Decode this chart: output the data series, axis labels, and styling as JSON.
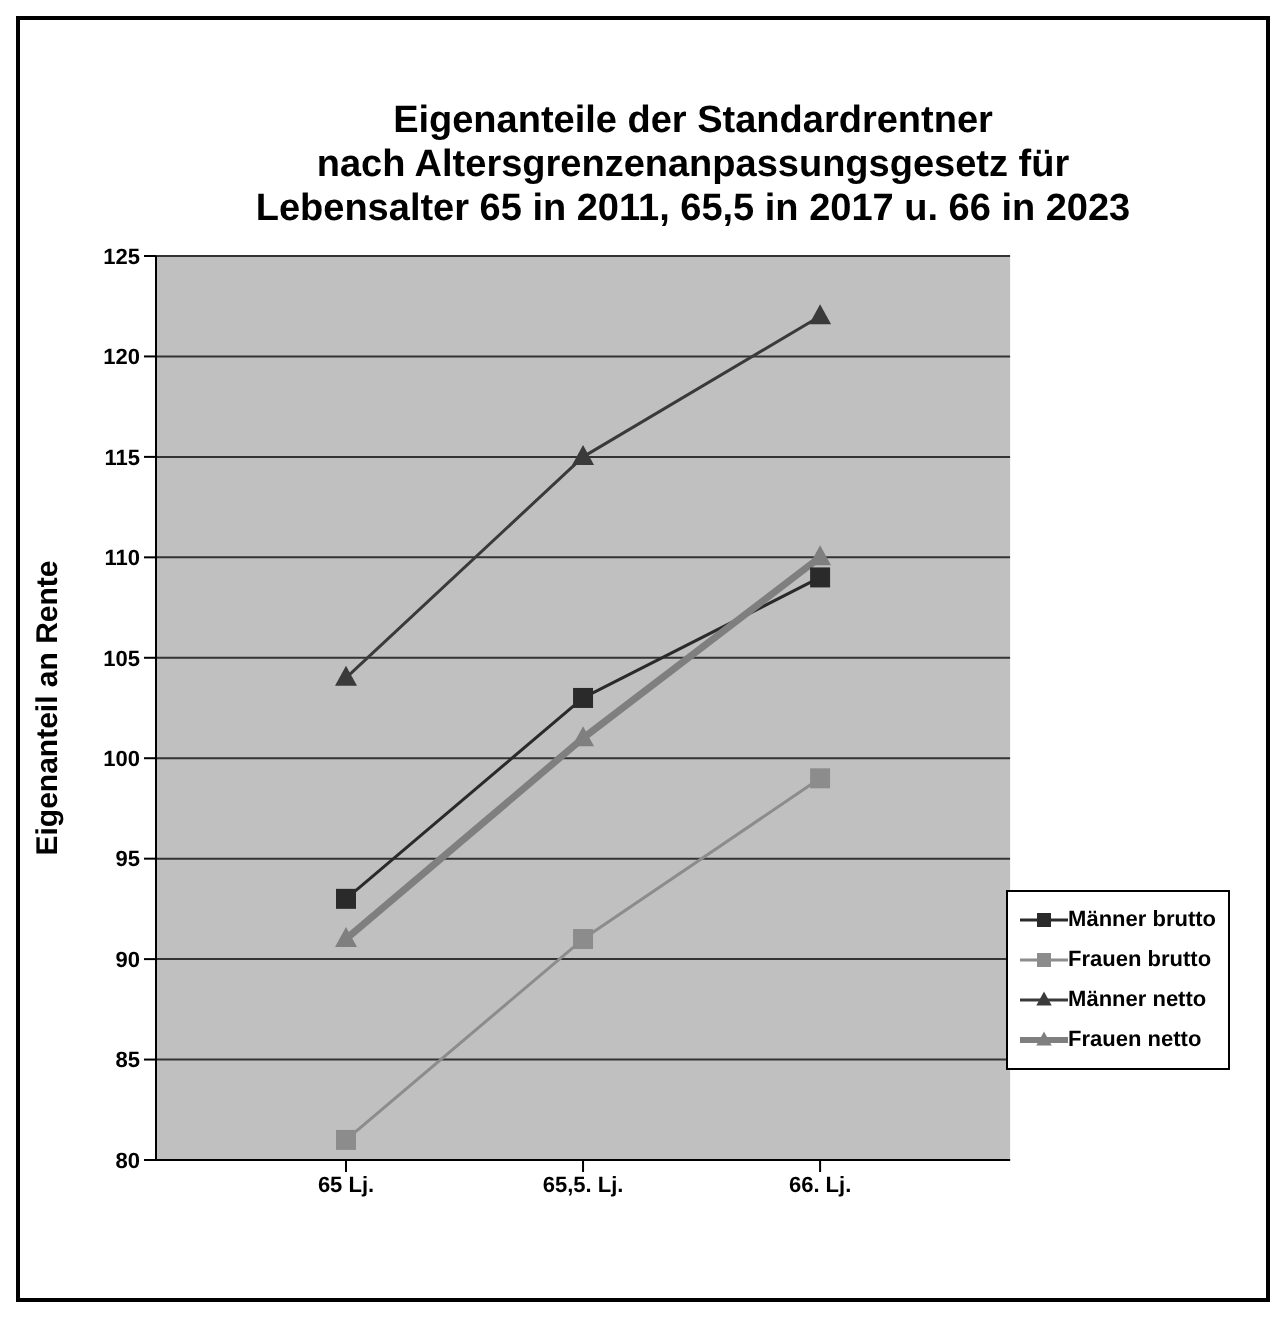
{
  "chart_data": {
    "type": "line",
    "title": "Eigenanteile der Standardrentner\nnach Altersgrenzenanpassungsgesetz für\nLebensalter 65 in 2011, 65,5 in 2017 u. 66 in 2023",
    "ylabel": "Eigenanteil an Rente",
    "categories": [
      "65 Lj.",
      "65,5. Lj.",
      "66. Lj."
    ],
    "series": [
      {
        "name": "Männer brutto",
        "color": "#2a2a2a",
        "marker": "square",
        "values": [
          93,
          103,
          109
        ]
      },
      {
        "name": "Frauen brutto",
        "color": "#8c8c8c",
        "marker": "square",
        "values": [
          81,
          91,
          99
        ]
      },
      {
        "name": "Männer netto",
        "color": "#3a3a3a",
        "marker": "triangle",
        "values": [
          104,
          115,
          122
        ]
      },
      {
        "name": "Frauen netto",
        "color": "#7f7f7f",
        "marker": "triangle",
        "values": [
          91,
          101,
          110
        ]
      }
    ],
    "ylim": [
      80,
      125
    ],
    "yticks": [
      80,
      85,
      90,
      95,
      100,
      105,
      110,
      115,
      120,
      125
    ],
    "grid": "y",
    "legend": "bottom right"
  }
}
